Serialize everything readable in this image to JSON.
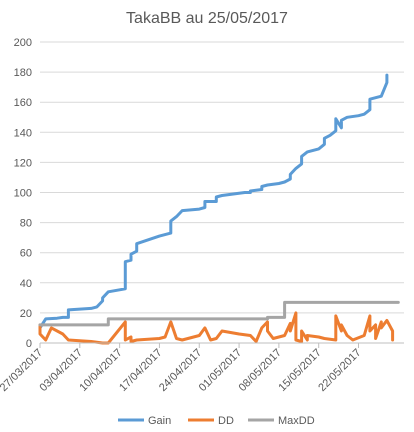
{
  "chart_data": {
    "type": "line",
    "title": "TakaBB au 25/05/2017",
    "xlabel": "",
    "ylabel": "",
    "x_range": [
      "2017-03-27",
      "2017-05-30"
    ],
    "ylim": [
      0,
      200
    ],
    "y_ticks": [
      "0",
      "20",
      "40",
      "60",
      "80",
      "100",
      "120",
      "140",
      "160",
      "180",
      "200"
    ],
    "x_ticks": [
      {
        "date": "2017-03-27",
        "label": "27/03/2017"
      },
      {
        "date": "2017-04-03",
        "label": "03/04/2017"
      },
      {
        "date": "2017-04-10",
        "label": "10/04/2017"
      },
      {
        "date": "2017-04-17",
        "label": "17/04/2017"
      },
      {
        "date": "2017-04-24",
        "label": "24/04/2017"
      },
      {
        "date": "2017-05-01",
        "label": "01/05/2017"
      },
      {
        "date": "2017-05-08",
        "label": "08/05/2017"
      },
      {
        "date": "2017-05-15",
        "label": "15/05/2017"
      },
      {
        "date": "2017-05-22",
        "label": "22/05/2017"
      }
    ],
    "grid": "horizontal",
    "legend_position": "bottom",
    "series": [
      {
        "name": "Gain",
        "color": "#5B9BD5",
        "points": [
          [
            "2017-03-27",
            10
          ],
          [
            "2017-03-28",
            16
          ],
          [
            "2017-03-30",
            16.5
          ],
          [
            "2017-03-31",
            17
          ],
          [
            "2017-04-01",
            17
          ],
          [
            "2017-04-01",
            22
          ],
          [
            "2017-04-05",
            23
          ],
          [
            "2017-04-06",
            24
          ],
          [
            "2017-04-07",
            28
          ],
          [
            "2017-04-07",
            30
          ],
          [
            "2017-04-08",
            34
          ],
          [
            "2017-04-11",
            36
          ],
          [
            "2017-04-11",
            54
          ],
          [
            "2017-04-12",
            55
          ],
          [
            "2017-04-12",
            59
          ],
          [
            "2017-04-13",
            61
          ],
          [
            "2017-04-13",
            66
          ],
          [
            "2017-04-17",
            71
          ],
          [
            "2017-04-19",
            73
          ],
          [
            "2017-04-19",
            81
          ],
          [
            "2017-04-20",
            84
          ],
          [
            "2017-04-21",
            88
          ],
          [
            "2017-04-24",
            89
          ],
          [
            "2017-04-25",
            90
          ],
          [
            "2017-04-25",
            94
          ],
          [
            "2017-04-27",
            94
          ],
          [
            "2017-04-27",
            97
          ],
          [
            "2017-04-28",
            98
          ],
          [
            "2017-05-02",
            100
          ],
          [
            "2017-05-03",
            100
          ],
          [
            "2017-05-03",
            101
          ],
          [
            "2017-05-05",
            102
          ],
          [
            "2017-05-05",
            104
          ],
          [
            "2017-05-06",
            105
          ],
          [
            "2017-05-08",
            106
          ],
          [
            "2017-05-09",
            107
          ],
          [
            "2017-05-10",
            109
          ],
          [
            "2017-05-10",
            112
          ],
          [
            "2017-05-11",
            116
          ],
          [
            "2017-05-12",
            119
          ],
          [
            "2017-05-12",
            124
          ],
          [
            "2017-05-13",
            127
          ],
          [
            "2017-05-15",
            129
          ],
          [
            "2017-05-16",
            132
          ],
          [
            "2017-05-16",
            136
          ],
          [
            "2017-05-17",
            138
          ],
          [
            "2017-05-18",
            141
          ],
          [
            "2017-05-18",
            149
          ],
          [
            "2017-05-19",
            143
          ],
          [
            "2017-05-19",
            148
          ],
          [
            "2017-05-20",
            150
          ],
          [
            "2017-05-22",
            151
          ],
          [
            "2017-05-23",
            152
          ],
          [
            "2017-05-24",
            155
          ],
          [
            "2017-05-24",
            162
          ],
          [
            "2017-05-26",
            164
          ],
          [
            "2017-05-27",
            173
          ],
          [
            "2017-05-27",
            178
          ]
        ]
      },
      {
        "name": "DD",
        "color": "#ED7D31",
        "points": [
          [
            "2017-03-27",
            12
          ],
          [
            "2017-03-27",
            6
          ],
          [
            "2017-03-28",
            2
          ],
          [
            "2017-03-29",
            10
          ],
          [
            "2017-03-31",
            6
          ],
          [
            "2017-04-01",
            2
          ],
          [
            "2017-04-05",
            1
          ],
          [
            "2017-04-07",
            0
          ],
          [
            "2017-04-08",
            0
          ],
          [
            "2017-04-11",
            14
          ],
          [
            "2017-04-11",
            2
          ],
          [
            "2017-04-12",
            4
          ],
          [
            "2017-04-12",
            1
          ],
          [
            "2017-04-13",
            2
          ],
          [
            "2017-04-17",
            3
          ],
          [
            "2017-04-18",
            4
          ],
          [
            "2017-04-19",
            14
          ],
          [
            "2017-04-20",
            3
          ],
          [
            "2017-04-21",
            2
          ],
          [
            "2017-04-24",
            5
          ],
          [
            "2017-04-25",
            10
          ],
          [
            "2017-04-26",
            2
          ],
          [
            "2017-04-27",
            3
          ],
          [
            "2017-04-28",
            8
          ],
          [
            "2017-05-01",
            6
          ],
          [
            "2017-05-03",
            5
          ],
          [
            "2017-05-04",
            1
          ],
          [
            "2017-05-05",
            10
          ],
          [
            "2017-05-06",
            14
          ],
          [
            "2017-05-06",
            8
          ],
          [
            "2017-05-07",
            3
          ],
          [
            "2017-05-08",
            4
          ],
          [
            "2017-05-09",
            5
          ],
          [
            "2017-05-10",
            13
          ],
          [
            "2017-05-10",
            8
          ],
          [
            "2017-05-11",
            20
          ],
          [
            "2017-05-11",
            2
          ],
          [
            "2017-05-12",
            1
          ],
          [
            "2017-05-12",
            8
          ],
          [
            "2017-05-13",
            2
          ],
          [
            "2017-05-13",
            5
          ],
          [
            "2017-05-15",
            4
          ],
          [
            "2017-05-16",
            3
          ],
          [
            "2017-05-18",
            2
          ],
          [
            "2017-05-18",
            18
          ],
          [
            "2017-05-19",
            8
          ],
          [
            "2017-05-19",
            12
          ],
          [
            "2017-05-20",
            5
          ],
          [
            "2017-05-21",
            2
          ],
          [
            "2017-05-23",
            5
          ],
          [
            "2017-05-24",
            18
          ],
          [
            "2017-05-24",
            8
          ],
          [
            "2017-05-25",
            12
          ],
          [
            "2017-05-25",
            3
          ],
          [
            "2017-05-26",
            14
          ],
          [
            "2017-05-26",
            10
          ],
          [
            "2017-05-27",
            15
          ],
          [
            "2017-05-28",
            8
          ],
          [
            "2017-05-28",
            2
          ]
        ]
      },
      {
        "name": "MaxDD",
        "color": "#A5A5A5",
        "points": [
          [
            "2017-03-27",
            12
          ],
          [
            "2017-04-08",
            12
          ],
          [
            "2017-04-08",
            16
          ],
          [
            "2017-05-06",
            16
          ],
          [
            "2017-05-06",
            17
          ],
          [
            "2017-05-09",
            17
          ],
          [
            "2017-05-09",
            27
          ],
          [
            "2017-05-29",
            27
          ]
        ]
      }
    ]
  }
}
